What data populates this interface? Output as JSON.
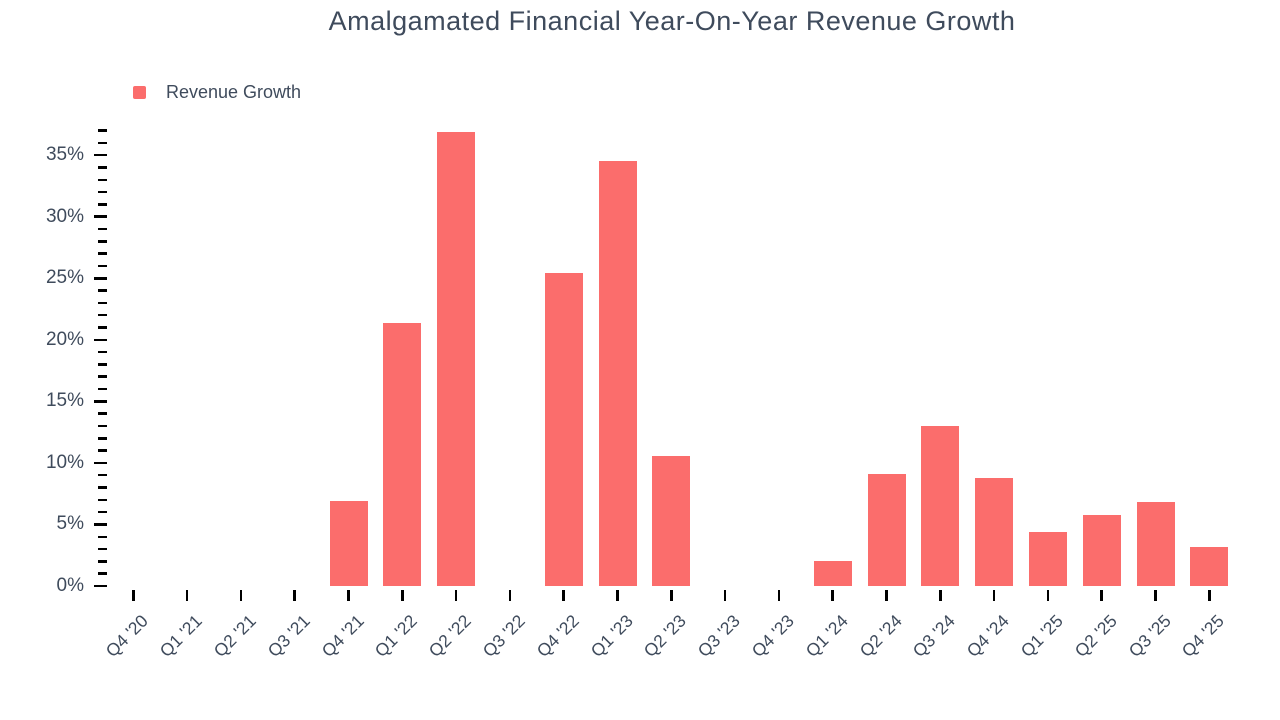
{
  "chart_data": {
    "type": "bar",
    "title": "Amalgamated Financial Year-On-Year Revenue Growth",
    "legend": [
      {
        "label": "Revenue Growth",
        "color": "#fb6d6c"
      }
    ],
    "legend_position": "top-left",
    "grid": false,
    "categories": [
      "Q4 '20",
      "Q1 '21",
      "Q2 '21",
      "Q3 '21",
      "Q4 '21",
      "Q1 '22",
      "Q2 '22",
      "Q3 '22",
      "Q4 '22",
      "Q1 '23",
      "Q2 '23",
      "Q3 '23",
      "Q4 '23",
      "Q1 '24",
      "Q2 '24",
      "Q3 '24",
      "Q4 '24",
      "Q1 '25",
      "Q2 '25",
      "Q3 '25",
      "Q4 '25"
    ],
    "series": [
      {
        "name": "Revenue Growth",
        "values": [
          null,
          null,
          null,
          null,
          6.9,
          21.4,
          36.9,
          null,
          25.4,
          34.5,
          10.6,
          null,
          null,
          2.0,
          9.1,
          13.0,
          8.8,
          4.4,
          5.8,
          6.8,
          3.2
        ]
      }
    ],
    "xlabel": "",
    "ylabel": "",
    "ylim": [
      0,
      37
    ],
    "yticks": {
      "major_step": 5,
      "minor_step": 1,
      "labels": [
        "0%",
        "5%",
        "10%",
        "15%",
        "20%",
        "25%",
        "30%",
        "35%"
      ]
    },
    "colors": {
      "bar": "#fb6d6c",
      "text": "#3f4b5c",
      "tick": "#000000",
      "background": "#ffffff"
    }
  }
}
